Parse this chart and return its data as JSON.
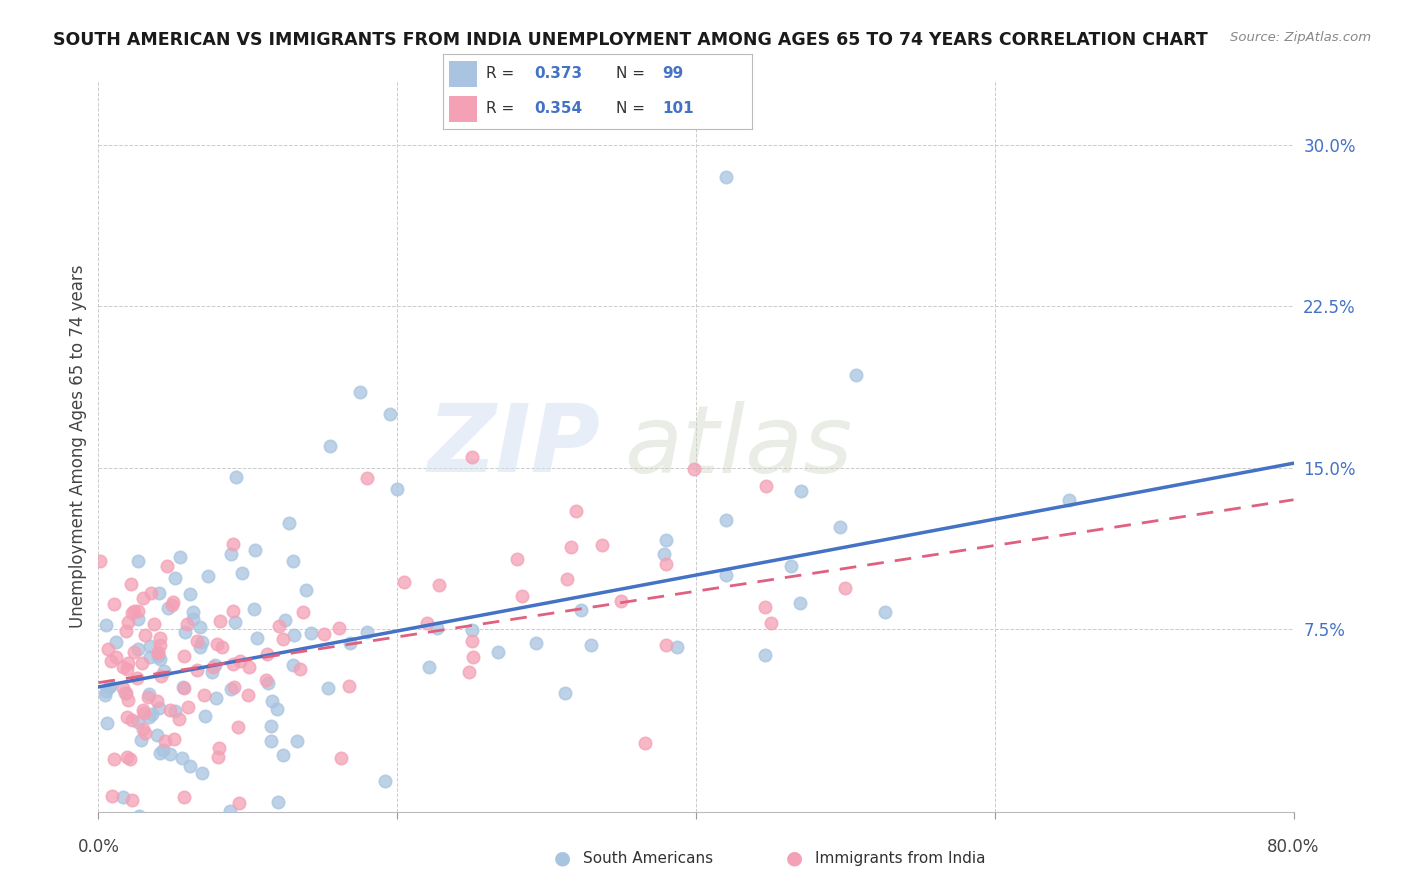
{
  "title": "SOUTH AMERICAN VS IMMIGRANTS FROM INDIA UNEMPLOYMENT AMONG AGES 65 TO 74 YEARS CORRELATION CHART",
  "source": "Source: ZipAtlas.com",
  "ylabel": "Unemployment Among Ages 65 to 74 years",
  "ytick_labels": [
    "7.5%",
    "15.0%",
    "22.5%",
    "30.0%"
  ],
  "ytick_values": [
    0.075,
    0.15,
    0.225,
    0.3
  ],
  "xlim": [
    0.0,
    0.8
  ],
  "ylim": [
    -0.01,
    0.33
  ],
  "legend_blue_label": "South Americans",
  "legend_pink_label": "Immigrants from India",
  "R_blue": 0.373,
  "N_blue": 99,
  "R_pink": 0.354,
  "N_pink": 101,
  "blue_color": "#a8c4e0",
  "pink_color": "#f4a0b5",
  "line_blue": "#4472c4",
  "line_pink_color": "#e06080",
  "watermark_zip": "ZIP",
  "watermark_atlas": "atlas",
  "background_color": "#ffffff",
  "grid_color": "#cccccc",
  "blue_line_start_y": 0.048,
  "blue_line_end_y": 0.152,
  "pink_line_start_y": 0.05,
  "pink_line_end_y": 0.135
}
